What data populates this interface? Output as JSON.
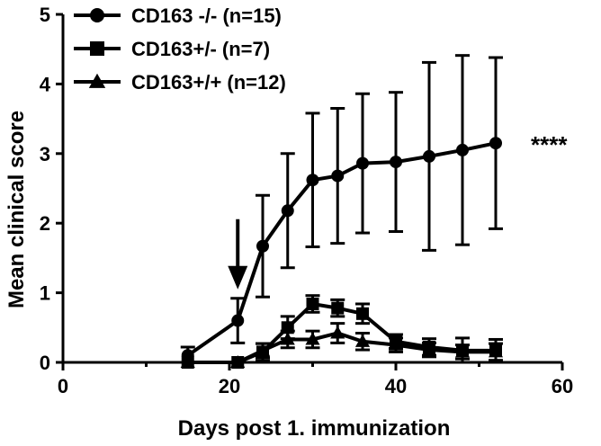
{
  "chart_data": {
    "type": "line",
    "xlabel": "Days post 1. immunization",
    "ylabel": "Mean clinical score",
    "xlim": [
      0,
      60
    ],
    "ylim": [
      0,
      5
    ],
    "xticks": [
      "0",
      "20",
      "40",
      "60"
    ],
    "yticks": [
      "0",
      "1",
      "2",
      "3",
      "4",
      "5"
    ],
    "grid": false,
    "legend_position": "top-left",
    "annotation": "****",
    "arrow_at": {
      "x": 21,
      "y": 1.05
    },
    "series": [
      {
        "name": "CD163 -/- (n=15)",
        "marker": "circle",
        "x": [
          15,
          21,
          24,
          27,
          30,
          33,
          36,
          40,
          44,
          48,
          52
        ],
        "y": [
          0.1,
          0.6,
          1.67,
          2.18,
          2.62,
          2.68,
          2.86,
          2.88,
          2.96,
          3.05,
          3.15
        ],
        "err": [
          0.12,
          0.32,
          0.73,
          0.82,
          0.96,
          0.97,
          1.0,
          1.0,
          1.35,
          1.36,
          1.23
        ]
      },
      {
        "name": "CD163+/-  (n=7)",
        "marker": "square",
        "x": [
          15,
          21,
          24,
          27,
          30,
          33,
          36,
          40,
          44,
          48,
          52
        ],
        "y": [
          0.0,
          0.0,
          0.15,
          0.5,
          0.84,
          0.78,
          0.7,
          0.3,
          0.22,
          0.17,
          0.17
        ],
        "err": [
          0.0,
          0.0,
          0.12,
          0.16,
          0.12,
          0.12,
          0.14,
          0.1,
          0.12,
          0.18,
          0.16
        ]
      },
      {
        "name": "CD163+/+ (n=12)",
        "marker": "triangle",
        "x": [
          15,
          21,
          24,
          27,
          30,
          33,
          36,
          40,
          44,
          48,
          52
        ],
        "y": [
          0.0,
          0.0,
          0.17,
          0.33,
          0.33,
          0.42,
          0.3,
          0.25,
          0.18,
          0.15,
          0.15
        ],
        "err": [
          0.0,
          0.0,
          0.1,
          0.12,
          0.12,
          0.14,
          0.12,
          0.1,
          0.1,
          0.1,
          0.12
        ]
      }
    ]
  }
}
